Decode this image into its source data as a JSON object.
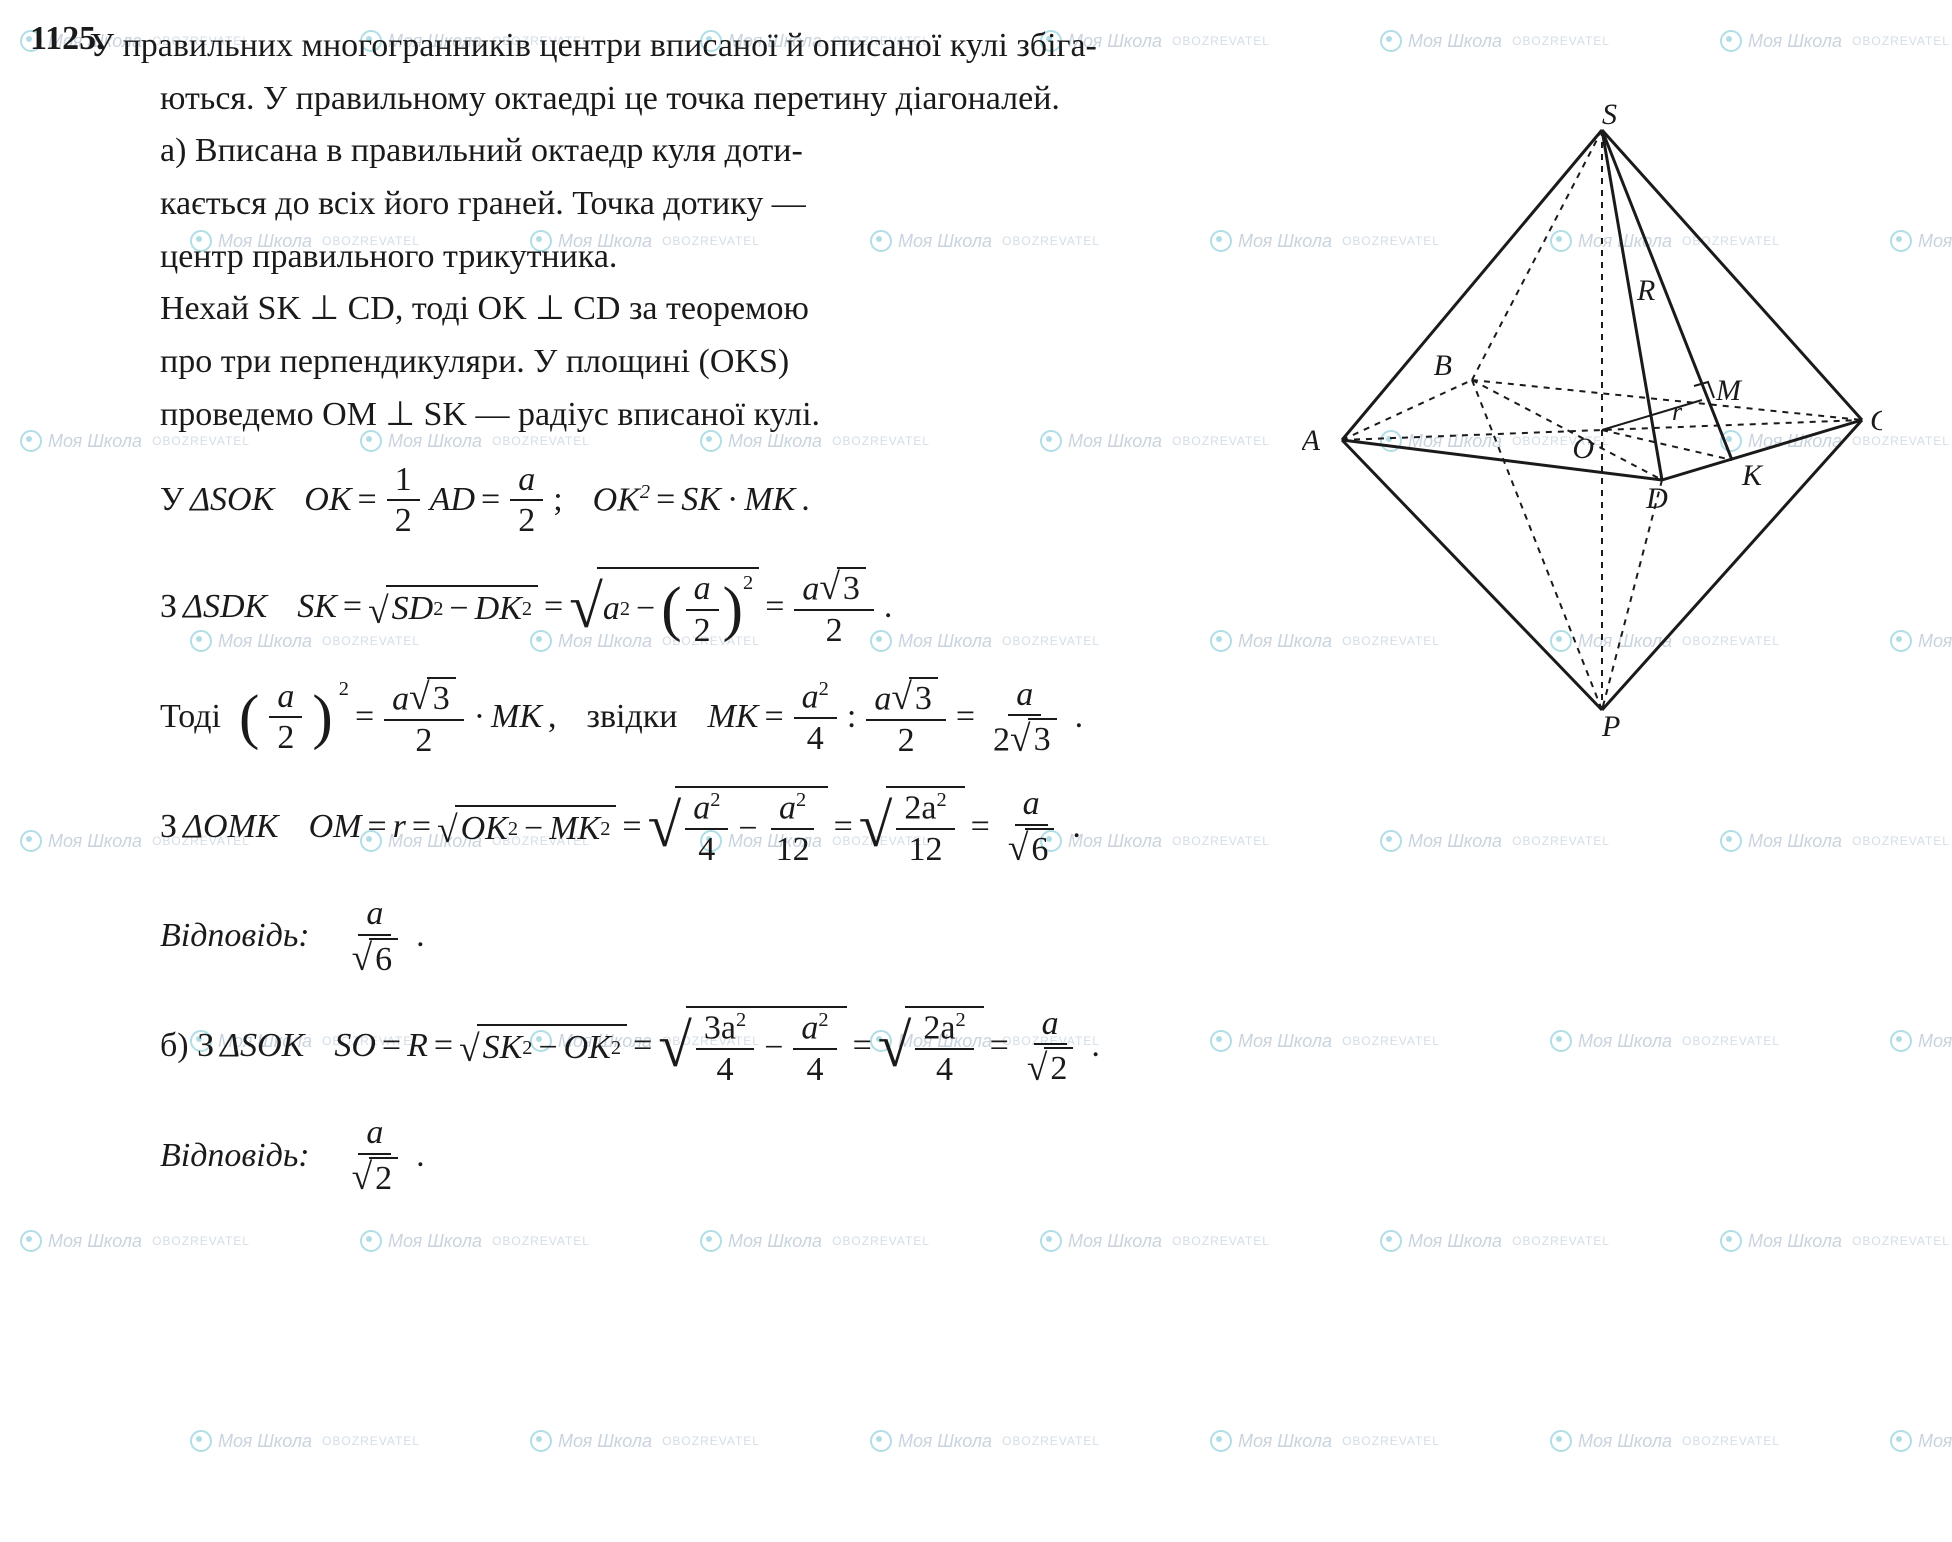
{
  "problem_number": "1125.",
  "intro_l1": "У правильних многогранників центри вписаної й описаної кулі збіга-",
  "intro_l2": "ються. У правильному октаедрі це точка перетину діагоналей.",
  "a_l1": "а) Вписана в правильний октаедр куля доти-",
  "a_l2": "кається до всіх його граней. Точка дотику —",
  "a_l3": "центр правильного трикутника.",
  "a_l4": "Нехай SK ⊥ CD, тоді OK ⊥ CD за теоремою",
  "a_l5": "про три перпендикуляри. У площині (OKS)",
  "a_l6": "проведемо OM ⊥ SK — радіус вписаної кулі.",
  "row1_pre": "У ",
  "tri_SOK": "ΔSOK",
  "OK_eq": "OK",
  "eq": "=",
  "half": "1",
  "two": "2",
  "AD": "AD",
  "a": "a",
  "semicolon": ";",
  "OK2": "OK",
  "SK": "SK",
  "dot": "·",
  "MK": "MK",
  "period": ".",
  "row2_pre": "З ",
  "tri_SDK": "ΔSDK",
  "SD": "SD",
  "DK": "DK",
  "a_sqr": "a",
  "sqrt3": "3",
  "row3_pre": "Тоді ",
  "zvidky": "звідки",
  "four": "4",
  "twelve": "12",
  "two_a2": "2a",
  "six": "6",
  "row4_pre": "З ",
  "tri_OMK": "ΔOMK",
  "OM": "OM",
  "r": "r",
  "answer_label": "Відповідь:",
  "b_pre": "б) З ",
  "SO": "SO",
  "R": "R",
  "three_a2": "3a",
  "sqrt2": "2",
  "comma": ",",
  "minus": "−",
  "colon": ":",
  "watermark_text": "Моя Школа",
  "watermark_text2": "OBOZREVATEL",
  "figure": {
    "labels": {
      "S": "S",
      "P": "P",
      "A": "A",
      "B": "B",
      "C": "C",
      "D": "D",
      "O": "O",
      "K": "K",
      "M": "M",
      "R": "R",
      "r": "r"
    },
    "stroke": "#1a1a1a",
    "dash": "4 4"
  }
}
